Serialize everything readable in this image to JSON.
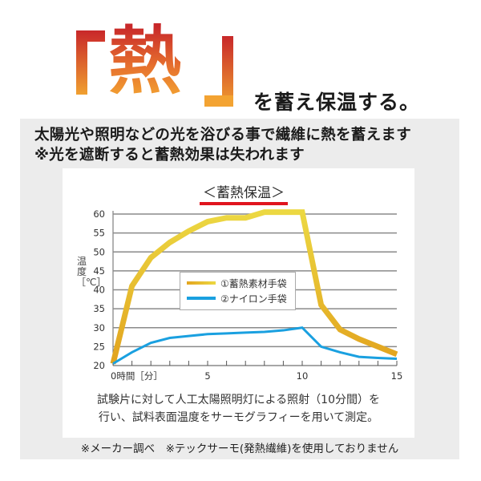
{
  "hero": {
    "bracket_open": "「",
    "big_char": "熱",
    "bracket_close": "」",
    "subtitle": "を蓄え保温する。",
    "gradient_colors": [
      "#c8282a",
      "#e6702e",
      "#f4a832"
    ]
  },
  "description": {
    "line1": "太陽光や照明などの光を浴びる事で繊維に熱を蓄えます",
    "line2": "※光を遮断すると蓄熱効果は失われます"
  },
  "chart": {
    "title": "＜蓄熱保温＞",
    "underline_color": "#e0141e",
    "y_axis_label": "温度［℃］",
    "x_axis_label": "時間［分］",
    "caption_line1": "試験片に対して人工太陽照明灯による照射（10分間）を",
    "caption_line2": "行い、試料表面温度をサーモグラフィーを用いて測定。",
    "legend": [
      {
        "label": "①蓄熱素材手袋",
        "color": "#e8c42a"
      },
      {
        "label": "②ナイロン手袋",
        "color": "#1aa0e0"
      }
    ]
  },
  "footnote": "※メーカー調べ　※テックサーモ(発熱繊維)を使用しておりません",
  "chart_data": {
    "type": "line",
    "title": "＜蓄熱保温＞",
    "xlabel": "時間［分］",
    "ylabel": "温度［℃］",
    "x": [
      0,
      1,
      2,
      3,
      4,
      5,
      6,
      7,
      8,
      9,
      10,
      11,
      12,
      13,
      14,
      15
    ],
    "x_ticks": [
      0,
      5,
      10,
      15
    ],
    "y_ticks": [
      20,
      25,
      30,
      35,
      40,
      45,
      50,
      55,
      60
    ],
    "xlim": [
      0,
      15
    ],
    "ylim": [
      20,
      60
    ],
    "grid": "horizontal",
    "legend_position": "inside-center-left",
    "series": [
      {
        "name": "①蓄熱素材手袋",
        "color": "#e8c42a",
        "values": [
          20.5,
          41,
          48.5,
          52.5,
          55.5,
          58,
          59,
          59,
          60.5,
          60.5,
          60.5,
          36,
          29.5,
          27,
          25,
          23
        ]
      },
      {
        "name": "②ナイロン手袋",
        "color": "#1aa0e0",
        "values": [
          20.5,
          23.5,
          26,
          27.3,
          27.8,
          28.3,
          28.5,
          28.7,
          28.9,
          29.3,
          30,
          25,
          23.5,
          22.3,
          22,
          21.8
        ]
      }
    ]
  }
}
